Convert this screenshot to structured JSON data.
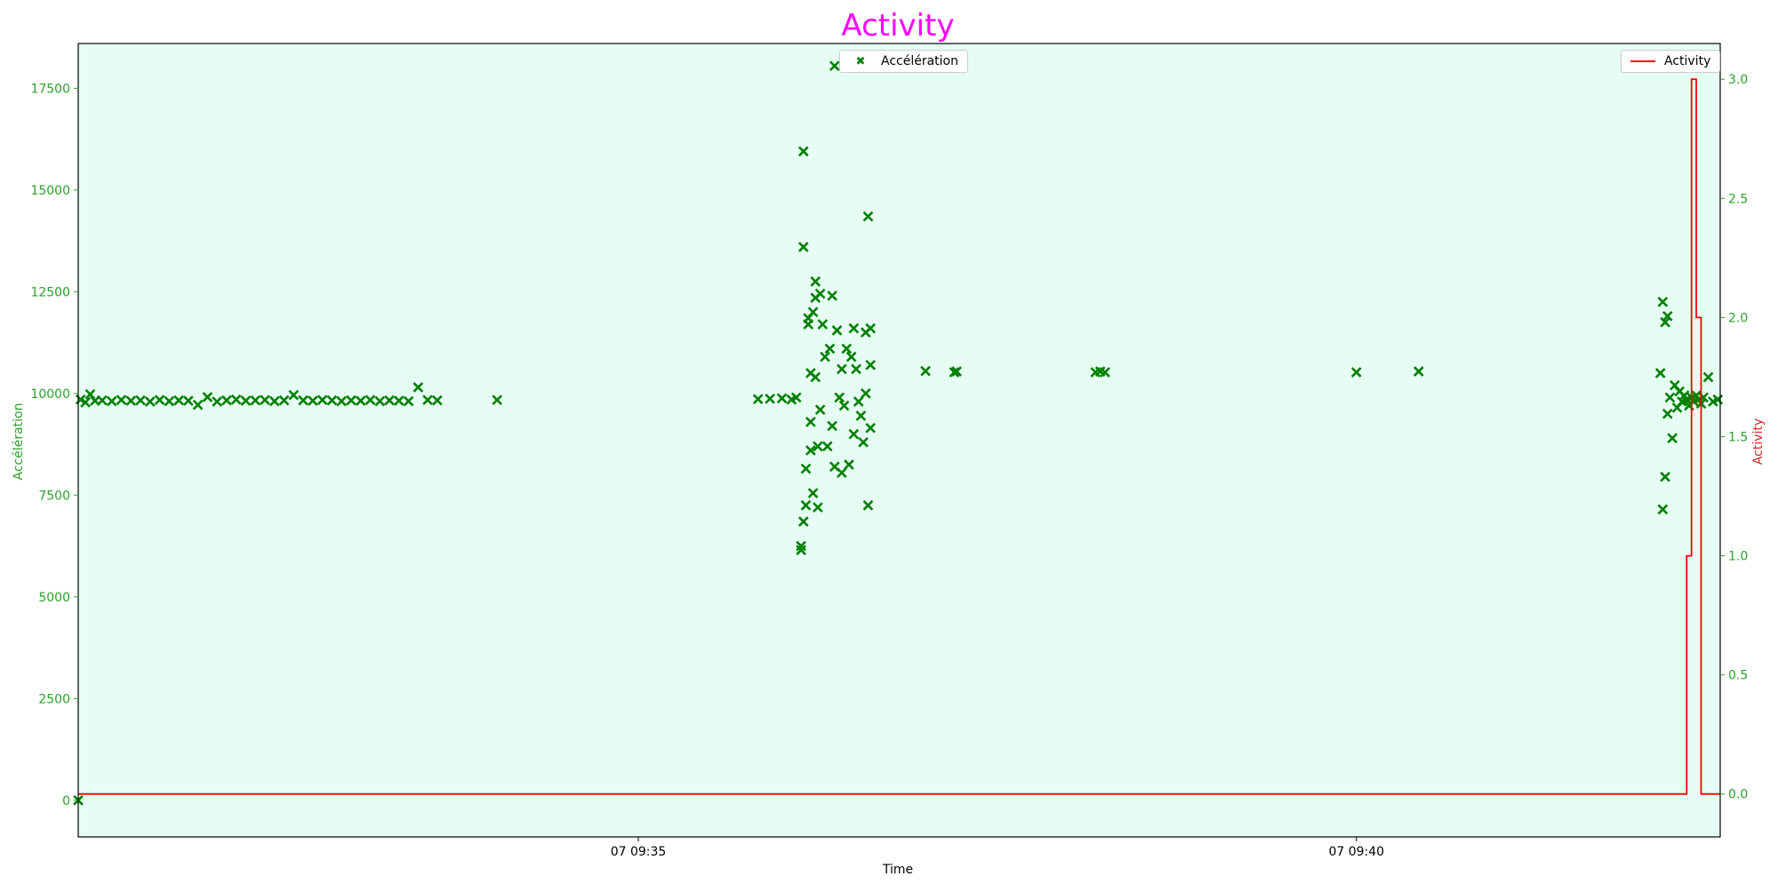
{
  "title": "Activity",
  "colors": {
    "title": "#ff00ff",
    "plot_background": "#e6fdf3",
    "acceleration": "#008000",
    "activity": "#ff0000",
    "left_axis": "#2ca02c",
    "right_axis_ticks": "#2ca02c",
    "right_axis_label": "#d62728"
  },
  "legends": {
    "acceleration": "Accélération",
    "activity": "Activity"
  },
  "chart_data": {
    "type": "scatter",
    "title": "Activity",
    "xlabel": "Time",
    "ylabel_left": "Accélération",
    "ylabel_right": "Activity",
    "xlim": [
      "09:31:06",
      "09:42:32"
    ],
    "ylim_left": [
      -900,
      18600
    ],
    "ylim_right": [
      -0.18,
      3.15
    ],
    "x_ticks": [
      {
        "time": "09:35:00",
        "label": "07 09:35"
      },
      {
        "time": "09:40:00",
        "label": "07 09:40"
      }
    ],
    "y_ticks_left": [
      0,
      2500,
      5000,
      7500,
      10000,
      12500,
      15000,
      17500
    ],
    "y_tick_labels_left": [
      "0",
      "2500",
      "5000",
      "7500",
      "10000",
      "12500",
      "15000",
      "17500"
    ],
    "y_ticks_right": [
      0.0,
      0.5,
      1.0,
      1.5,
      2.0,
      2.5,
      3.0
    ],
    "y_tick_labels_right": [
      "0.0",
      "0.5",
      "1.0",
      "1.5",
      "2.0",
      "2.5",
      "3.0"
    ],
    "legend_placement": {
      "acceleration": "upper center",
      "activity": "upper right"
    },
    "grid": false,
    "series": [
      {
        "name": "Accélération",
        "type": "scatter",
        "axis": "left",
        "marker": "x",
        "points": [
          [
            "09:31:06",
            0
          ],
          [
            "09:31:07",
            9850
          ],
          [
            "09:31:09",
            9780
          ],
          [
            "09:31:11",
            9980
          ],
          [
            "09:31:13",
            9820
          ],
          [
            "09:31:16",
            9830
          ],
          [
            "09:31:20",
            9810
          ],
          [
            "09:31:24",
            9840
          ],
          [
            "09:31:28",
            9820
          ],
          [
            "09:31:32",
            9830
          ],
          [
            "09:31:36",
            9800
          ],
          [
            "09:31:40",
            9840
          ],
          [
            "09:31:44",
            9810
          ],
          [
            "09:31:48",
            9830
          ],
          [
            "09:31:52",
            9820
          ],
          [
            "09:31:56",
            9720
          ],
          [
            "09:32:00",
            9910
          ],
          [
            "09:32:04",
            9800
          ],
          [
            "09:32:08",
            9830
          ],
          [
            "09:32:12",
            9850
          ],
          [
            "09:32:16",
            9820
          ],
          [
            "09:32:20",
            9830
          ],
          [
            "09:32:24",
            9840
          ],
          [
            "09:32:28",
            9810
          ],
          [
            "09:32:32",
            9830
          ],
          [
            "09:32:36",
            9960
          ],
          [
            "09:32:40",
            9830
          ],
          [
            "09:32:44",
            9820
          ],
          [
            "09:32:48",
            9840
          ],
          [
            "09:32:52",
            9830
          ],
          [
            "09:32:56",
            9810
          ],
          [
            "09:33:00",
            9830
          ],
          [
            "09:33:04",
            9820
          ],
          [
            "09:33:08",
            9840
          ],
          [
            "09:33:12",
            9810
          ],
          [
            "09:33:16",
            9830
          ],
          [
            "09:33:20",
            9820
          ],
          [
            "09:33:24",
            9810
          ],
          [
            "09:33:28",
            10150
          ],
          [
            "09:33:32",
            9840
          ],
          [
            "09:33:36",
            9830
          ],
          [
            "09:34:01",
            9840
          ],
          [
            "09:35:50",
            9860
          ],
          [
            "09:35:55",
            9870
          ],
          [
            "09:36:00",
            9880
          ],
          [
            "09:36:04",
            9850
          ],
          [
            "09:36:06",
            9900
          ],
          [
            "09:36:08",
            6150
          ],
          [
            "09:36:08",
            6250
          ],
          [
            "09:36:09",
            6850
          ],
          [
            "09:36:09",
            13600
          ],
          [
            "09:36:09",
            15950
          ],
          [
            "09:36:10",
            7250
          ],
          [
            "09:36:10",
            8150
          ],
          [
            "09:36:11",
            11700
          ],
          [
            "09:36:11",
            11850
          ],
          [
            "09:36:12",
            10500
          ],
          [
            "09:36:12",
            8600
          ],
          [
            "09:36:12",
            9300
          ],
          [
            "09:36:13",
            12000
          ],
          [
            "09:36:13",
            7550
          ],
          [
            "09:36:14",
            12350
          ],
          [
            "09:36:14",
            12750
          ],
          [
            "09:36:14",
            10400
          ],
          [
            "09:36:15",
            7200
          ],
          [
            "09:36:15",
            8700
          ],
          [
            "09:36:16",
            12450
          ],
          [
            "09:36:16",
            9600
          ],
          [
            "09:36:17",
            11700
          ],
          [
            "09:36:18",
            10900
          ],
          [
            "09:36:19",
            8700
          ],
          [
            "09:36:20",
            11100
          ],
          [
            "09:36:21",
            9200
          ],
          [
            "09:36:21",
            12400
          ],
          [
            "09:36:22",
            8200
          ],
          [
            "09:36:22",
            18050
          ],
          [
            "09:36:23",
            11550
          ],
          [
            "09:36:24",
            9900
          ],
          [
            "09:36:25",
            10600
          ],
          [
            "09:36:25",
            8050
          ],
          [
            "09:36:26",
            9700
          ],
          [
            "09:36:27",
            11100
          ],
          [
            "09:36:28",
            8250
          ],
          [
            "09:36:29",
            10900
          ],
          [
            "09:36:30",
            11600
          ],
          [
            "09:36:30",
            9000
          ],
          [
            "09:36:31",
            10600
          ],
          [
            "09:36:32",
            9800
          ],
          [
            "09:36:33",
            9450
          ],
          [
            "09:36:34",
            8800
          ],
          [
            "09:36:35",
            11500
          ],
          [
            "09:36:35",
            10000
          ],
          [
            "09:36:36",
            14350
          ],
          [
            "09:36:36",
            7250
          ],
          [
            "09:36:37",
            11600
          ],
          [
            "09:36:37",
            9150
          ],
          [
            "09:36:37",
            10700
          ],
          [
            "09:37:00",
            10550
          ],
          [
            "09:37:12",
            10520
          ],
          [
            "09:37:13",
            10540
          ],
          [
            "09:38:11",
            10520
          ],
          [
            "09:38:13",
            10540
          ],
          [
            "09:38:15",
            10520
          ],
          [
            "09:40:00",
            10520
          ],
          [
            "09:40:26",
            10540
          ],
          [
            "09:42:07",
            10500
          ],
          [
            "09:42:08",
            12250
          ],
          [
            "09:42:08",
            7150
          ],
          [
            "09:42:09",
            11750
          ],
          [
            "09:42:09",
            7950
          ],
          [
            "09:42:10",
            9500
          ],
          [
            "09:42:10",
            11900
          ],
          [
            "09:42:11",
            9900
          ],
          [
            "09:42:12",
            8900
          ],
          [
            "09:42:13",
            10200
          ],
          [
            "09:42:14",
            9650
          ],
          [
            "09:42:15",
            10050
          ],
          [
            "09:42:16",
            9800
          ],
          [
            "09:42:17",
            9950
          ],
          [
            "09:42:18",
            9850
          ],
          [
            "09:42:19",
            9700
          ],
          [
            "09:42:20",
            9900
          ],
          [
            "09:42:21",
            9800
          ],
          [
            "09:42:22",
            9950
          ],
          [
            "09:42:23",
            9850
          ],
          [
            "09:42:24",
            9750
          ],
          [
            "09:42:25",
            9900
          ],
          [
            "09:42:27",
            10400
          ],
          [
            "09:42:29",
            9800
          ],
          [
            "09:42:31",
            9850
          ]
        ]
      },
      {
        "name": "Activity",
        "type": "line",
        "step": true,
        "axis": "right",
        "points": [
          [
            "09:31:06",
            0
          ],
          [
            "09:42:18",
            0
          ],
          [
            "09:42:18",
            1
          ],
          [
            "09:42:20",
            1
          ],
          [
            "09:42:20",
            3
          ],
          [
            "09:42:22",
            3
          ],
          [
            "09:42:22",
            2
          ],
          [
            "09:42:24",
            2
          ],
          [
            "09:42:24",
            0
          ],
          [
            "09:42:32",
            0
          ]
        ]
      }
    ]
  }
}
